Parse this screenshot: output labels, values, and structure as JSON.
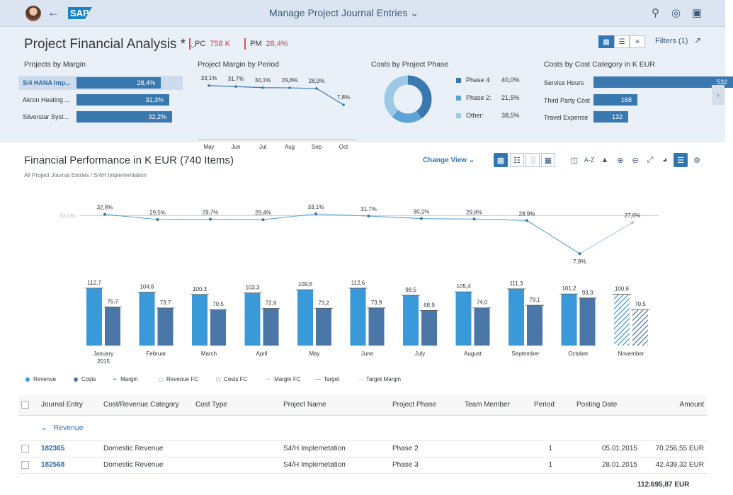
{
  "shell": {
    "app_title": "Manage Project Journal Entries",
    "logo_text": "SAP"
  },
  "header": {
    "title": "Project Financial Analysis *",
    "kpis": [
      {
        "label": "PC",
        "value": "758 K"
      },
      {
        "label": "PM",
        "value": "28,4%"
      }
    ],
    "filters_label": "Filters (1)"
  },
  "cards": {
    "margin": {
      "title": "Projects by Margin",
      "rows": [
        {
          "label": "S/4 HANA Imp...",
          "value": "28,4%",
          "pct": 28.4
        },
        {
          "label": "Akron Heating ...",
          "value": "31,3%",
          "pct": 31.3
        },
        {
          "label": "Silverstar Syst...",
          "value": "32,2%",
          "pct": 32.2
        }
      ]
    },
    "period": {
      "title": "Project Margin by Period",
      "months": [
        "May",
        "Jun",
        "Jul",
        "Aug",
        "Sep",
        "Oct"
      ],
      "values": [
        33.1,
        31.7,
        30.1,
        29.8,
        28.9,
        7.8
      ],
      "labels": [
        "33,1%",
        "31,7%",
        "30,1%",
        "29,8%",
        "28,9%",
        "7,8%"
      ]
    },
    "phase": {
      "title": "Costs by Project Phase",
      "items": [
        {
          "label": "Phase 4:",
          "value": "40,0%",
          "pct": 40.0,
          "color": "#3a78b0"
        },
        {
          "label": "Phase 2:",
          "value": "21,5%",
          "pct": 21.5,
          "color": "#5ea3d6"
        },
        {
          "label": "Other:",
          "value": "38,5%",
          "pct": 38.5,
          "color": "#9cc8e8"
        }
      ]
    },
    "category": {
      "title": "Costs by Cost Category in K EUR",
      "rows": [
        {
          "label": "Service Hours",
          "value": "532",
          "amount": 532
        },
        {
          "label": "Third Party Cost",
          "value": "168",
          "amount": 168
        },
        {
          "label": "Travel Expense",
          "value": "132",
          "amount": 132
        }
      ]
    }
  },
  "main": {
    "title": "Financial Performance in K EUR (740 Items)",
    "subtitle": "All Project Journal Entries / S/4H Implementation",
    "change_view": "Change View",
    "sort_label": "A-Z"
  },
  "chart_data": {
    "type": "bar",
    "categories": [
      "January\n2015",
      "Februar",
      "March",
      "April",
      "May",
      "June",
      "July",
      "August",
      "September",
      "October",
      "November"
    ],
    "series": [
      {
        "name": "Revenue",
        "values": [
          112.7,
          104.6,
          100.3,
          103.3,
          109.6,
          112.6,
          98.5,
          105.4,
          111.3,
          101.2,
          100.6
        ],
        "labels": [
          "112,7",
          "104,6",
          "100,3",
          "103,3",
          "109,6",
          "112,6",
          "98,5",
          "105,4",
          "111,3",
          "101,2",
          "100,6"
        ],
        "color": "#3a9ad9"
      },
      {
        "name": "Costs",
        "values": [
          75.7,
          73.7,
          70.5,
          72.9,
          73.2,
          73.9,
          68.9,
          74.0,
          79.1,
          93.3,
          70.5
        ],
        "labels": [
          "75,7",
          "73,7",
          "70,5",
          "72,9",
          "73,2",
          "73,9",
          "68,9",
          "74,0",
          "79,1",
          "93,3",
          "70,5"
        ],
        "color": "#4a77a8"
      },
      {
        "name": "Margin",
        "values": [
          32.8,
          29.5,
          29.7,
          29.4,
          33.1,
          31.7,
          30.1,
          29.8,
          28.9,
          7.8,
          27.6
        ],
        "labels": [
          "32,8%",
          "29,5%",
          "29,7%",
          "29,4%",
          "33,1%",
          "31,7%",
          "30,1%",
          "29,8%",
          "28,9%",
          "7,8%",
          "27,6%"
        ],
        "color": "#5aa3cf"
      }
    ],
    "target_margin_label": "32,0%",
    "forecast_categories": [
      "November"
    ],
    "legend": [
      {
        "name": "Revenue",
        "symbol": "dot",
        "color": "#3a9ad9"
      },
      {
        "name": "Costs",
        "symbol": "dot",
        "color": "#4a77a8"
      },
      {
        "name": "Margin",
        "symbol": "line-dot",
        "color": "#3a78b0"
      },
      {
        "name": "Revenue FC",
        "symbol": "hatch",
        "color": "#7db9e2"
      },
      {
        "name": "Costs FC",
        "symbol": "hatch",
        "color": "#7d9fc4"
      },
      {
        "name": "Margin FC",
        "symbol": "line-dot",
        "color": "#8ab8dc"
      },
      {
        "name": "Target",
        "symbol": "line",
        "color": "#555"
      },
      {
        "name": "Target Margin",
        "symbol": "line",
        "color": "#bbb"
      }
    ]
  },
  "table": {
    "columns": [
      "Journal Entry",
      "Cost/Revenue Category",
      "Cost Type",
      "Project Name",
      "Project Phase",
      "Team Member",
      "Period",
      "Posting Date",
      "Amount"
    ],
    "group_label": "Revenue",
    "rows": [
      {
        "entry": "182365",
        "category": "Domestic Revenue",
        "cost_type": "",
        "project": "S4/H Implemetation",
        "phase": "Phase 2",
        "member": "",
        "period": "1",
        "date": "05.01.2015",
        "amount": "70.256,55 EUR"
      },
      {
        "entry": "182568",
        "category": "Domestic Revenue",
        "cost_type": "",
        "project": "S4/H Implemetation",
        "phase": "Phase 3",
        "member": "",
        "period": "1",
        "date": "28.01.2015",
        "amount": "42.439,32 EUR"
      }
    ],
    "total": "112.695,87 EUR"
  }
}
